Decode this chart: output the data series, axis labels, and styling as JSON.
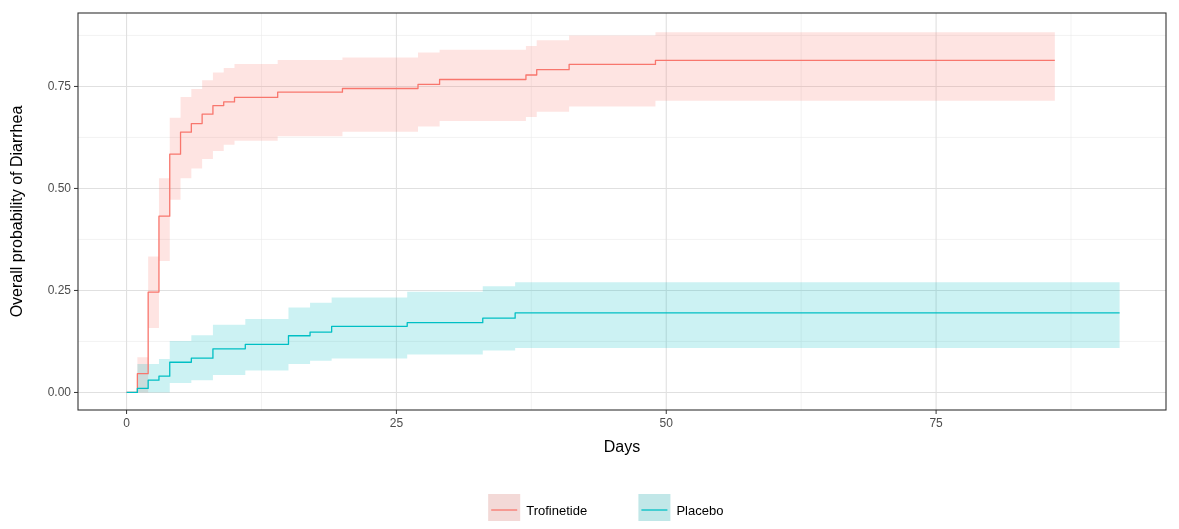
{
  "chart_data": {
    "type": "step",
    "xlabel": "Days",
    "ylabel": "Overall probability of Diarrhea",
    "xlim": [
      -4.5,
      96.3
    ],
    "ylim": [
      -0.043,
      0.93
    ],
    "xticks": [
      0,
      25,
      50,
      75
    ],
    "yticks": [
      {
        "value": 0,
        "label": "0.00"
      },
      {
        "value": 0.25,
        "label": "0.25"
      },
      {
        "value": 0.5,
        "label": "0.50"
      },
      {
        "value": 0.75,
        "label": "0.75"
      }
    ],
    "grid": true,
    "legend": "bottom",
    "series": [
      {
        "name": "Trofinetide",
        "color": "#f8766d",
        "x": [
          0,
          1,
          2,
          3,
          4,
          5,
          6,
          7,
          8,
          9,
          10,
          14,
          20,
          27,
          29,
          37,
          38,
          41,
          49,
          86
        ],
        "values": [
          0,
          0.046,
          0.246,
          0.432,
          0.584,
          0.638,
          0.659,
          0.682,
          0.703,
          0.712,
          0.723,
          0.736,
          0.745,
          0.755,
          0.767,
          0.778,
          0.791,
          0.804,
          0.814,
          0.814
        ],
        "upper": [
          0,
          0.086,
          0.333,
          0.525,
          0.673,
          0.724,
          0.744,
          0.765,
          0.784,
          0.795,
          0.805,
          0.815,
          0.821,
          0.833,
          0.84,
          0.849,
          0.863,
          0.875,
          0.883,
          0.883
        ],
        "lower": [
          0,
          0,
          0.158,
          0.322,
          0.472,
          0.525,
          0.549,
          0.572,
          0.592,
          0.607,
          0.617,
          0.628,
          0.639,
          0.652,
          0.665,
          0.675,
          0.688,
          0.701,
          0.715,
          0.715
        ]
      },
      {
        "name": "Placebo",
        "color": "#00bfc4",
        "x": [
          0,
          1,
          2,
          3,
          4,
          6,
          8,
          11,
          15,
          17,
          19,
          26,
          33,
          36,
          92
        ],
        "values": [
          0,
          0.01,
          0.03,
          0.04,
          0.074,
          0.084,
          0.107,
          0.118,
          0.139,
          0.148,
          0.162,
          0.171,
          0.182,
          0.195,
          0.195
        ],
        "upper": [
          0,
          0.07,
          0.07,
          0.082,
          0.126,
          0.14,
          0.166,
          0.18,
          0.208,
          0.22,
          0.233,
          0.247,
          0.26,
          0.27,
          0.27
        ],
        "lower": [
          0,
          0,
          0,
          0,
          0.023,
          0.03,
          0.043,
          0.054,
          0.07,
          0.078,
          0.083,
          0.093,
          0.103,
          0.109,
          0.109
        ]
      }
    ]
  }
}
